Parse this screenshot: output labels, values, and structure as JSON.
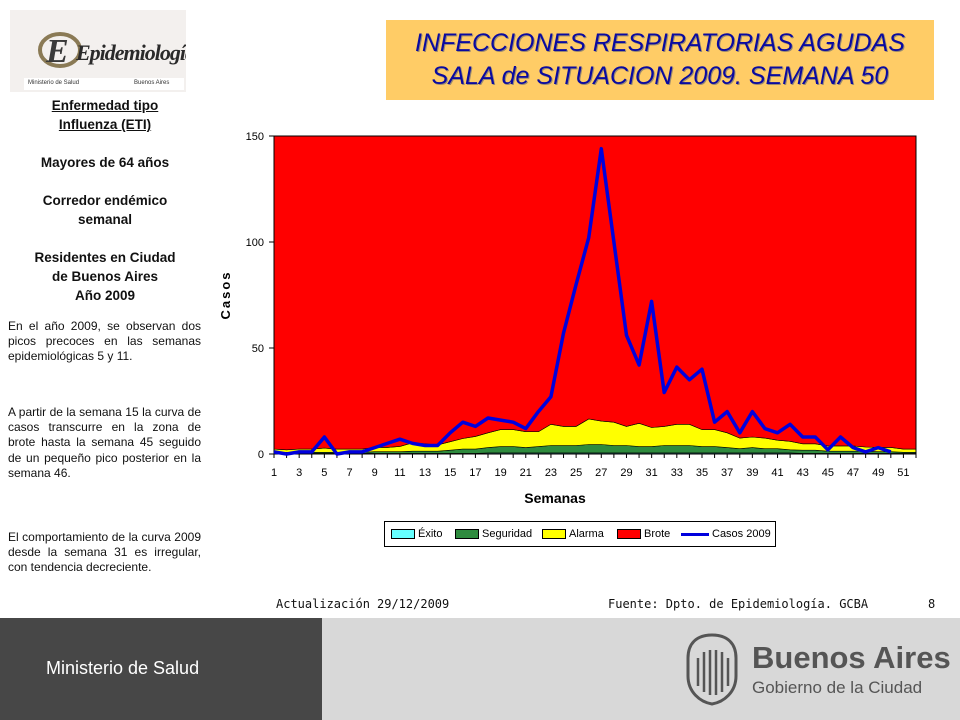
{
  "header": {
    "logo_text": "Epidemiología",
    "logo_sub_left": "Ministerio de Salud",
    "logo_sub_right": "Buenos Aires",
    "title_line1": "INFECCIONES RESPIRATORIAS AGUDAS",
    "title_line2": "SALA de SITUACION 2009. SEMANA 50"
  },
  "sidebar": {
    "line1": "Enfermedad  tipo",
    "line2": "Influenza  (ETI)",
    "line3": "Mayores de 64 años",
    "line4": "Corredor  endémico",
    "line5": "semanal",
    "line6": "Residentes en Ciudad",
    "line7": "de Buenos Aires",
    "line8": "Año 2009",
    "para1": "En el año 2009, se observan dos picos precoces en las semanas epidemiológicas 5 y 11.",
    "para2": "A partir de la semana 15 la curva de casos  transcurre en la zona de brote hasta la semana 45 seguido de un pequeño pico posterior en la semana 46.",
    "para3": "El comportamiento de la curva 2009 desde la semana 31 es irregular, con tendencia decreciente."
  },
  "footer": {
    "update_label": "Actualización",
    "update_date": "29/12/2009",
    "source": "Fuente: Dpto. de Epidemiología.  GCBA",
    "page": "8"
  },
  "bottom_bar": {
    "ministry": "Ministerio de Salud",
    "city": "Buenos Aires",
    "gov": "Gobierno de la Ciudad"
  },
  "colors": {
    "exito": "#66ffff",
    "seguridad": "#2e8b3e",
    "alarma": "#ffff00",
    "brote": "#ff0000",
    "casos": "#0000dd",
    "plot_bg": "#c0c0c0"
  },
  "chart_data": {
    "type": "area",
    "xlabel": "Semanas",
    "ylabel": "Casos",
    "ylim": [
      0,
      150
    ],
    "yticks": [
      0,
      50,
      100,
      150
    ],
    "x": [
      1,
      2,
      3,
      4,
      5,
      6,
      7,
      8,
      9,
      10,
      11,
      12,
      13,
      14,
      15,
      16,
      17,
      18,
      19,
      20,
      21,
      22,
      23,
      24,
      25,
      26,
      27,
      28,
      29,
      30,
      31,
      32,
      33,
      34,
      35,
      36,
      37,
      38,
      39,
      40,
      41,
      42,
      43,
      44,
      45,
      46,
      47,
      48,
      49,
      50,
      51,
      52
    ],
    "xtick_labels": [
      "1",
      "3",
      "5",
      "7",
      "9",
      "11",
      "13",
      "15",
      "17",
      "19",
      "21",
      "23",
      "25",
      "27",
      "29",
      "31",
      "33",
      "35",
      "37",
      "39",
      "41",
      "43",
      "45",
      "47",
      "49",
      "51"
    ],
    "series": [
      {
        "name": "Éxito",
        "values": [
          0.3,
          0.3,
          0.3,
          0.3,
          0.3,
          0.3,
          0.3,
          0.3,
          0.3,
          0.3,
          0.3,
          0.3,
          0.3,
          0.3,
          0.3,
          0.3,
          0.3,
          0.5,
          0.5,
          0.5,
          0.5,
          0.5,
          0.5,
          0.5,
          0.5,
          0.5,
          0.5,
          0.5,
          0.5,
          0.5,
          0.5,
          0.5,
          0.5,
          0.5,
          0.5,
          0.5,
          0.5,
          0.5,
          0.5,
          0.5,
          0.5,
          0.5,
          0.3,
          0.3,
          0.3,
          0.3,
          0.3,
          0.3,
          0.3,
          0.3,
          0.3,
          0.3
        ]
      },
      {
        "name": "Seguridad",
        "values": [
          0.5,
          0.5,
          0.5,
          0.5,
          0.5,
          0.5,
          0.5,
          0.5,
          0.8,
          0.8,
          0.8,
          1,
          1,
          1,
          1.5,
          2,
          2,
          2.5,
          3,
          3,
          2.5,
          3,
          3.5,
          3.5,
          3.5,
          4,
          4,
          3.5,
          3.5,
          3,
          3,
          3.5,
          3.5,
          3.5,
          3,
          3,
          2.5,
          2,
          2.5,
          2,
          2,
          1.5,
          1.5,
          1.5,
          1,
          1,
          1,
          1,
          0.8,
          0.8,
          0.5,
          0.5
        ]
      },
      {
        "name": "Alarma",
        "values": [
          1.5,
          1.2,
          1.5,
          1.5,
          2,
          1.5,
          1.5,
          1.5,
          2,
          2,
          2.5,
          4,
          3.5,
          3,
          4,
          5,
          6,
          7,
          8,
          8,
          7.5,
          7,
          10,
          9,
          9,
          12,
          11,
          11,
          9,
          11,
          9,
          9,
          10,
          10,
          8,
          8,
          7,
          5,
          5,
          5,
          4,
          4,
          3,
          3,
          2.5,
          2.5,
          2.5,
          2,
          2,
          2,
          1.5,
          1.5
        ]
      },
      {
        "name": "Brote",
        "values": [
          148,
          148,
          148,
          148,
          148,
          148,
          148,
          148,
          148,
          148,
          148,
          148,
          148,
          148,
          148,
          148,
          148,
          148,
          148,
          148,
          148,
          148,
          148,
          148,
          148,
          148,
          148,
          148,
          148,
          148,
          148,
          148,
          148,
          148,
          148,
          148,
          148,
          148,
          148,
          148,
          148,
          148,
          148,
          148,
          148,
          148,
          148,
          148,
          148,
          148,
          148,
          148
        ]
      },
      {
        "name": "Casos 2009",
        "values": [
          1,
          0,
          1,
          1,
          8,
          0,
          1,
          1,
          3,
          5,
          7,
          5,
          4,
          4,
          10,
          15,
          13,
          17,
          16,
          15,
          12,
          20,
          27,
          57,
          80,
          102,
          144,
          100,
          56,
          42,
          72,
          29,
          41,
          35,
          40,
          15,
          20,
          10,
          20,
          12,
          10,
          14,
          8,
          8,
          2,
          8,
          3,
          1,
          3,
          1,
          null,
          null
        ]
      }
    ],
    "legend": [
      "Éxito",
      "Seguridad",
      "Alarma",
      "Brote",
      "Casos 2009"
    ],
    "legend_position": "bottom"
  }
}
